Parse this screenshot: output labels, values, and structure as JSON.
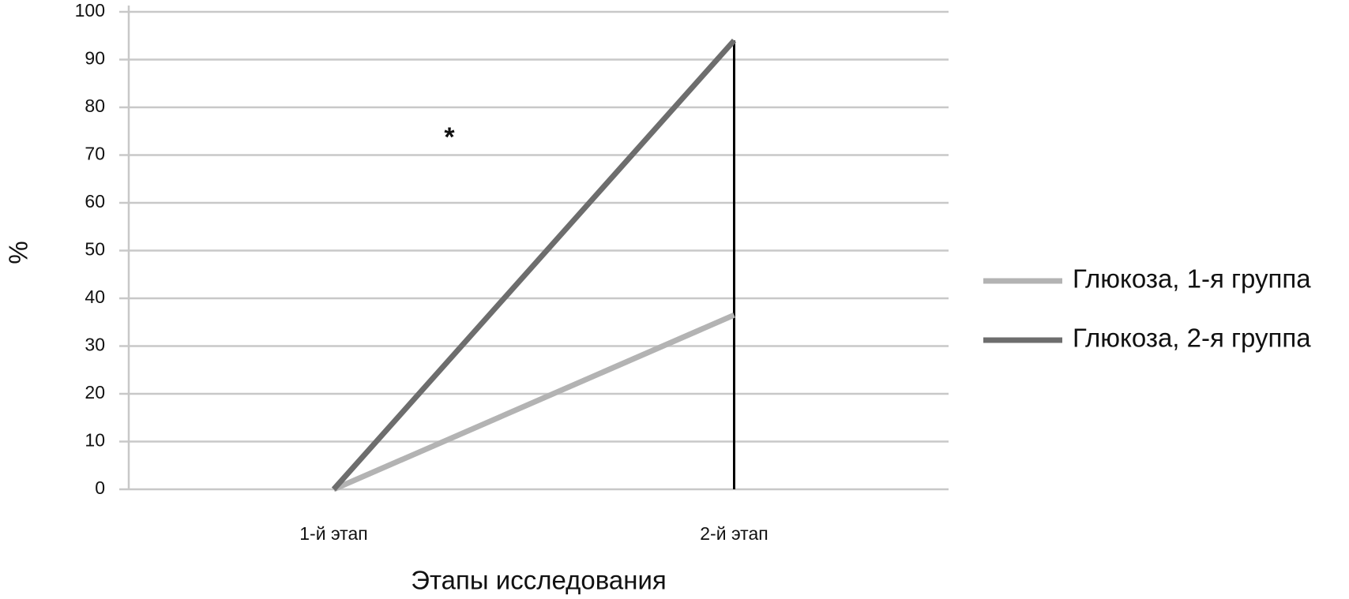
{
  "chart_data": {
    "type": "line",
    "categories": [
      "1-й этап",
      "2-й этап"
    ],
    "series": [
      {
        "name": "Глюкоза, 1-я группа",
        "color": "#b3b3b3",
        "values": [
          0,
          36.5
        ]
      },
      {
        "name": "Глюкоза, 2-я группа",
        "color": "#6d6d6d",
        "values": [
          0,
          94
        ]
      }
    ],
    "ylim": [
      0,
      100
    ],
    "yticks": [
      0,
      10,
      20,
      30,
      40,
      50,
      60,
      70,
      80,
      90,
      100
    ],
    "y_label": "%",
    "x_label": "Этапы исследования",
    "annotation": "*",
    "grid": true,
    "drop_lines": true,
    "legend": "right"
  }
}
